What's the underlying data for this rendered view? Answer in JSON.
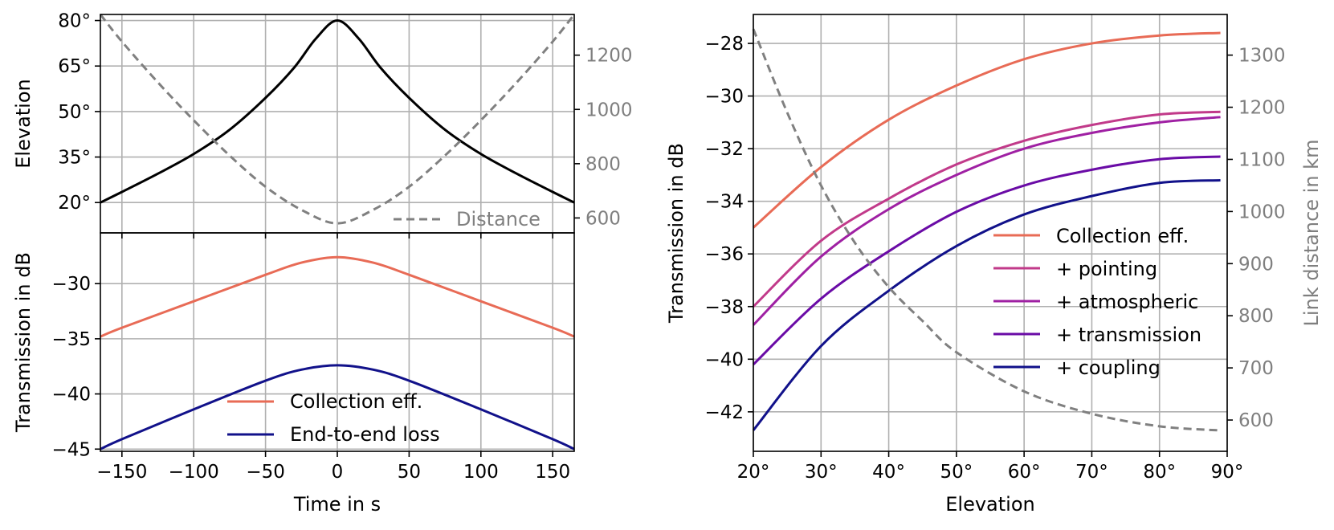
{
  "chart_data": [
    {
      "id": "elevation-vs-time",
      "type": "line",
      "xlim": [
        -165,
        165
      ],
      "ylim": [
        10,
        82
      ],
      "y2lim": [
        545,
        1350
      ],
      "yticks": [
        20,
        35,
        50,
        65,
        80
      ],
      "ytick_labels": [
        "20°",
        "35°",
        "50°",
        "65°",
        "80°"
      ],
      "xticks": [
        -150,
        -100,
        -50,
        0,
        50,
        100,
        150
      ],
      "y2ticks": [
        600,
        800,
        1000,
        1200
      ],
      "y2tick_labels": [
        "600",
        "800",
        "1000",
        "1200"
      ],
      "ylabel": "Elevation",
      "grid": true,
      "series": [
        {
          "name": "Elevation",
          "axis": "left",
          "color": "#000000",
          "dash": "solid",
          "x": [
            -165,
            -150,
            -125,
            -100,
            -75,
            -50,
            -30,
            -15,
            0,
            15,
            30,
            50,
            75,
            100,
            125,
            150,
            165
          ],
          "y": [
            20,
            23.5,
            29.5,
            36,
            44,
            54.5,
            64.5,
            74,
            80,
            74,
            64.5,
            54.5,
            44,
            36,
            29.5,
            23.5,
            20
          ]
        },
        {
          "name": "Distance",
          "axis": "right",
          "color": "#808080",
          "dash": "dashed",
          "x": [
            -165,
            -150,
            -125,
            -100,
            -75,
            -50,
            -25,
            0,
            25,
            50,
            75,
            100,
            125,
            150,
            165
          ],
          "y": [
            1350,
            1250,
            1100,
            960,
            830,
            715,
            630,
            580,
            630,
            715,
            830,
            960,
            1100,
            1250,
            1350
          ]
        }
      ],
      "legend": {
        "entries": [
          "Distance"
        ],
        "placement": "lower-right"
      }
    },
    {
      "id": "transmission-vs-time",
      "type": "line",
      "xlim": [
        -165,
        165
      ],
      "ylim": [
        -45.2,
        -25.4
      ],
      "yticks": [
        -45,
        -40,
        -35,
        -30
      ],
      "ytick_labels": [
        "−45",
        "−40",
        "−35",
        "−30"
      ],
      "xticks": [
        -150,
        -100,
        -50,
        0,
        50,
        100,
        150
      ],
      "xtick_labels": [
        "−150",
        "−100",
        "−50",
        "0",
        "50",
        "100",
        "150"
      ],
      "xlabel": "Time in s",
      "ylabel": "Transmission in dB",
      "grid": true,
      "series": [
        {
          "name": "Collection eff.",
          "color": "#e86b56",
          "x": [
            -165,
            -150,
            -100,
            -50,
            -25,
            0,
            25,
            50,
            100,
            150,
            165
          ],
          "y": [
            -34.8,
            -34,
            -31.6,
            -29.2,
            -28.1,
            -27.6,
            -28.1,
            -29.2,
            -31.6,
            -34,
            -34.8
          ]
        },
        {
          "name": "End-to-end loss",
          "color": "#11118a",
          "x": [
            -165,
            -150,
            -100,
            -50,
            -25,
            0,
            25,
            50,
            100,
            150,
            165
          ],
          "y": [
            -45,
            -44.1,
            -41.4,
            -38.8,
            -37.8,
            -37.4,
            -37.8,
            -38.8,
            -41.4,
            -44.1,
            -45
          ]
        }
      ],
      "legend": {
        "entries": [
          "Collection eff.",
          "End-to-end loss"
        ],
        "placement": "lower-center"
      }
    },
    {
      "id": "transmission-vs-elevation",
      "type": "line",
      "xlim": [
        20,
        90
      ],
      "ylim": [
        -43.5,
        -26.9
      ],
      "y2lim": [
        540,
        1378
      ],
      "xticks": [
        20,
        30,
        40,
        50,
        60,
        70,
        80,
        90
      ],
      "xtick_labels": [
        "20°",
        "30°",
        "40°",
        "50°",
        "60°",
        "70°",
        "80°",
        "90°"
      ],
      "yticks": [
        -42,
        -40,
        -38,
        -36,
        -34,
        -32,
        -30,
        -28
      ],
      "ytick_labels": [
        "−42",
        "−40",
        "−38",
        "−36",
        "−34",
        "−32",
        "−30",
        "−28"
      ],
      "y2ticks": [
        600,
        700,
        800,
        900,
        1000,
        1100,
        1200,
        1300
      ],
      "y2tick_labels": [
        "600",
        "700",
        "800",
        "900",
        "1000",
        "1100",
        "1200",
        "1300"
      ],
      "xlabel": "Elevation",
      "ylabel": "Transmission in dB",
      "y2label": "Link distance in km",
      "grid": true,
      "series": [
        {
          "name": "Collection eff.",
          "color": "#e86b56",
          "x": [
            20,
            30,
            40,
            50,
            60,
            70,
            80,
            89
          ],
          "y": [
            -35,
            -32.7,
            -30.9,
            -29.6,
            -28.6,
            -28,
            -27.7,
            -27.6
          ]
        },
        {
          "name": "+ pointing",
          "color": "#c13a8a",
          "x": [
            20,
            30,
            40,
            50,
            60,
            70,
            80,
            89
          ],
          "y": [
            -38,
            -35.5,
            -33.9,
            -32.6,
            -31.7,
            -31.1,
            -30.7,
            -30.6
          ]
        },
        {
          "name": "+ atmospheric",
          "color": "#9f20a3",
          "x": [
            20,
            30,
            40,
            50,
            60,
            70,
            80,
            89
          ],
          "y": [
            -38.7,
            -36.1,
            -34.3,
            -33,
            -32,
            -31.4,
            -31,
            -30.8
          ]
        },
        {
          "name": "+ transmission",
          "color": "#6a0ba6",
          "x": [
            20,
            30,
            40,
            50,
            60,
            70,
            80,
            89
          ],
          "y": [
            -40.2,
            -37.7,
            -35.9,
            -34.4,
            -33.4,
            -32.8,
            -32.4,
            -32.3
          ]
        },
        {
          "name": "+ coupling",
          "color": "#11118a",
          "x": [
            20,
            30,
            40,
            50,
            60,
            70,
            80,
            89
          ],
          "y": [
            -42.7,
            -39.5,
            -37.4,
            -35.7,
            -34.5,
            -33.8,
            -33.3,
            -33.2
          ]
        },
        {
          "name": "Distance",
          "axis": "right",
          "color": "#808080",
          "dash": "dashed",
          "x": [
            20,
            25,
            30,
            35,
            40,
            45,
            50,
            60,
            70,
            80,
            89
          ],
          "y": [
            1350,
            1190,
            1050,
            940,
            855,
            790,
            730,
            655,
            612,
            588,
            580
          ]
        }
      ],
      "legend": {
        "entries": [
          "Collection eff.",
          "+ pointing",
          "+ atmospheric",
          "+ transmission",
          "+ coupling"
        ],
        "placement": "center-right"
      }
    }
  ]
}
